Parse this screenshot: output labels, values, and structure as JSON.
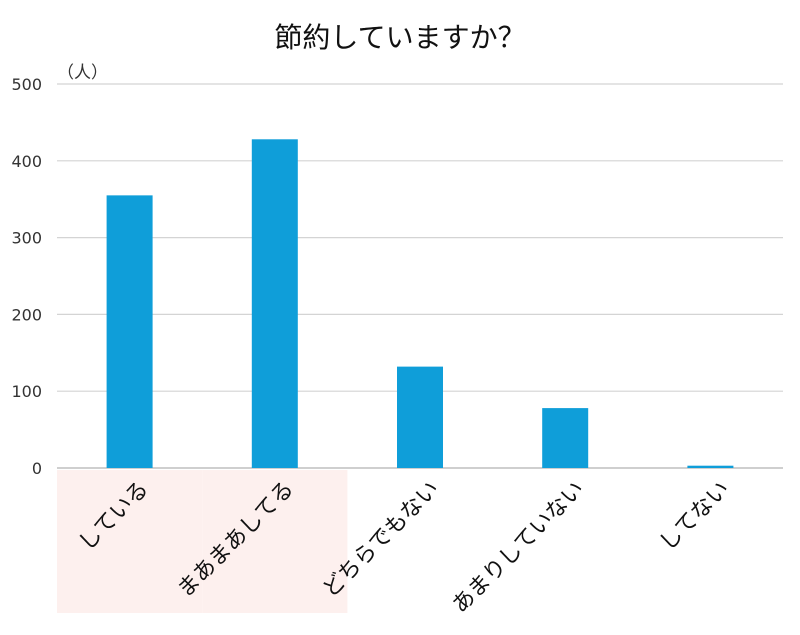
{
  "chart_data": {
    "type": "bar",
    "title": "節約していますか？",
    "unit_label": "（人）",
    "categories": [
      "している",
      "まあまあしてる",
      "どちらでもない",
      "あまりしていない",
      "してない"
    ],
    "values": [
      355,
      428,
      132,
      78,
      3
    ],
    "ylim": [
      0,
      500
    ],
    "yticks": [
      0,
      100,
      200,
      300,
      400,
      500
    ],
    "grid": true,
    "legend": "none",
    "bar_color": "#0f9ed9",
    "grid_color": "#d4d4d4",
    "highlight_color": "#fdf0ee",
    "highlighted_categories": [
      0,
      1
    ]
  }
}
